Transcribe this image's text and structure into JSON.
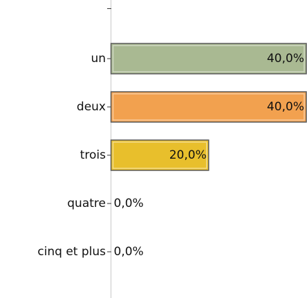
{
  "chart_data": {
    "type": "bar",
    "orientation": "horizontal",
    "categories": [
      "un",
      "deux",
      "trois",
      "quatre",
      "cinq et plus"
    ],
    "values": [
      40,
      40,
      20,
      0,
      0
    ],
    "value_labels": [
      "40,0%",
      "40,0%",
      "20,0%",
      "0,0%",
      "0,0%"
    ],
    "colors": [
      "#a9b992",
      "#f2a14f",
      "#e8bf2c",
      "#a9b992",
      "#f2a14f"
    ],
    "xlim": [
      0,
      40
    ]
  }
}
